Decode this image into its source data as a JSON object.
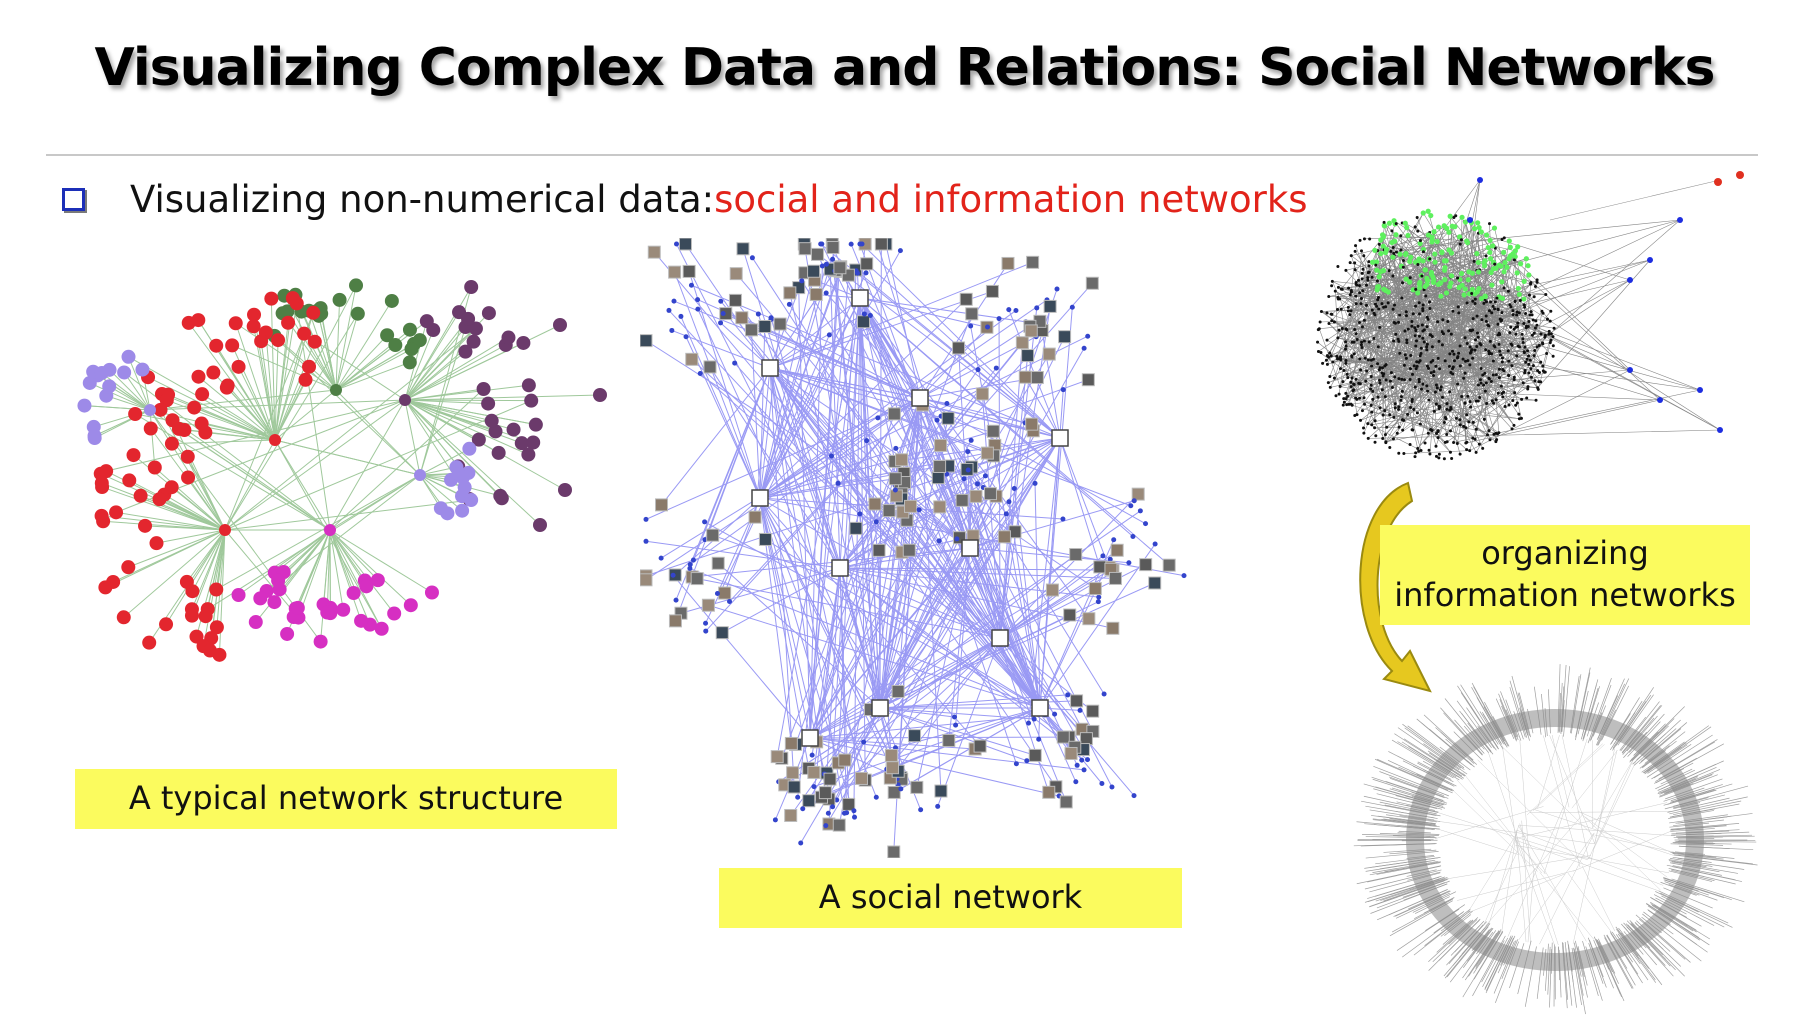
{
  "title": "Visualizing Complex Data and Relations: Social Networks",
  "bullet": {
    "text": "Visualizing non-numerical data: ",
    "highlight": "social and information networks",
    "highlight_color": "#e2231a"
  },
  "captions": {
    "typical": "A typical network structure",
    "social": "A social network",
    "organizing_line1": "organizing",
    "organizing_line2": "information networks"
  },
  "colors": {
    "caption_bg": "#fbfb5e",
    "bullet_color": "#1c2fb8",
    "green_cluster": "#4e7f45",
    "purple_cluster": "#6b3a6b",
    "red_cluster": "#e3262e",
    "magenta_cluster": "#d62fc2",
    "lavender_cluster": "#9d8ae8",
    "edge_green": "#8fbf8a",
    "social_edge": "#6f6ff0",
    "info_green": "#5ef05e",
    "info_blue": "#1d2de0",
    "arrow": "#e6c81f"
  }
}
